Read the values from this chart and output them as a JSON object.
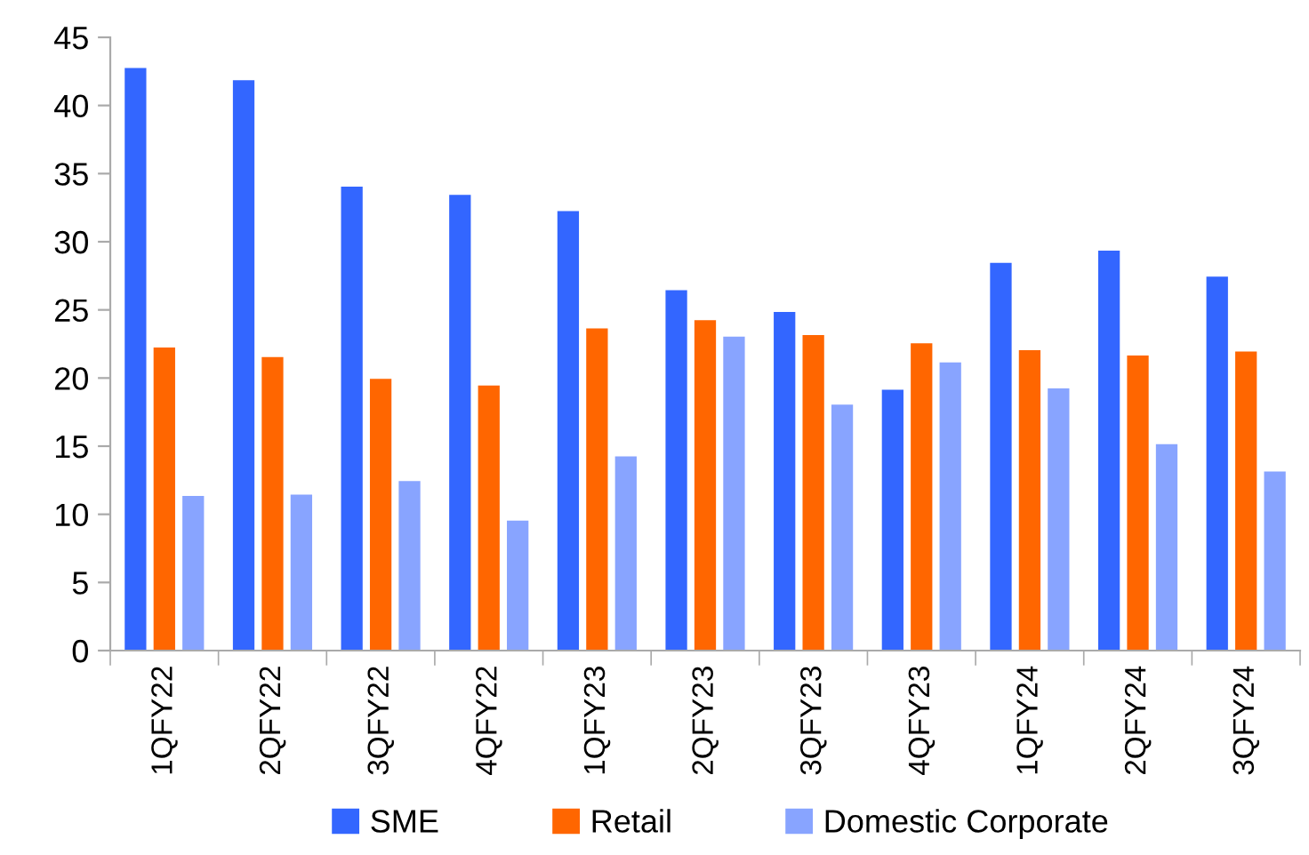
{
  "chart_data": {
    "type": "bar",
    "categories": [
      "1QFY22",
      "2QFY22",
      "3QFY22",
      "4QFY22",
      "1QFY23",
      "2QFY23",
      "3QFY23",
      "4QFY23",
      "1QFY24",
      "2QFY24",
      "3QFY24"
    ],
    "series": [
      {
        "name": "SME",
        "color": "#3366ff",
        "values": [
          42.8,
          41.9,
          34.1,
          33.5,
          32.3,
          26.5,
          24.9,
          19.2,
          28.5,
          29.4,
          27.5
        ]
      },
      {
        "name": "Retail",
        "color": "#ff6600",
        "values": [
          22.3,
          21.6,
          20.0,
          19.5,
          23.7,
          24.3,
          23.2,
          22.6,
          22.1,
          21.7,
          22.0
        ]
      },
      {
        "name": "Domestic Corporate",
        "color": "#88a4ff",
        "values": [
          11.4,
          11.5,
          12.5,
          9.6,
          14.3,
          23.1,
          18.1,
          21.2,
          19.3,
          15.2,
          13.2
        ]
      }
    ],
    "ylim": [
      0,
      45
    ],
    "yticks": [
      0,
      5,
      10,
      15,
      20,
      25,
      30,
      35,
      40,
      45
    ],
    "grid": false,
    "legend": "bottom"
  }
}
